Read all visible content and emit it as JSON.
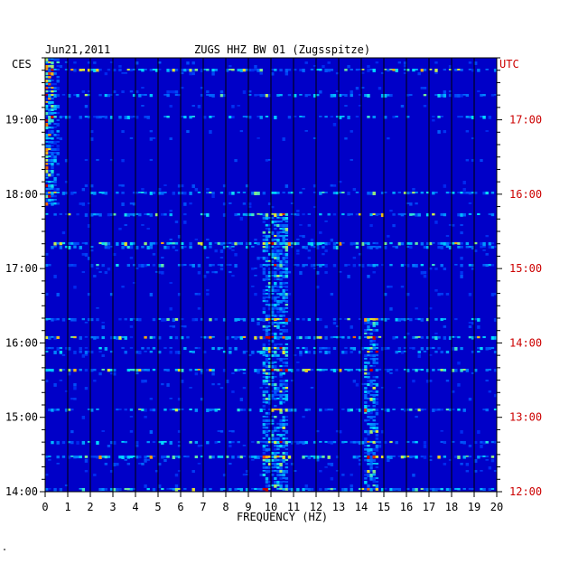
{
  "chart_data": {
    "type": "heatmap",
    "date": "Jun21,2011",
    "station": "ZUGS HHZ BW 01 (Zugsspitze)",
    "left_zone": "CES",
    "right_zone": "UTC",
    "xlabel": "FREQUENCY (HZ)",
    "x_range": [
      0,
      20
    ],
    "x_ticks": [
      "0",
      "1",
      "2",
      "3",
      "4",
      "5",
      "6",
      "7",
      "8",
      "9",
      "10",
      "11",
      "12",
      "13",
      "14",
      "15",
      "16",
      "17",
      "18",
      "19",
      "20"
    ],
    "y_range_ces": [
      "14:00",
      "19:50"
    ],
    "y_ticks_left": [
      "19:00",
      "18:00",
      "17:00",
      "16:00",
      "15:00",
      "14:00"
    ],
    "y_ticks_right": [
      "17:00",
      "16:00",
      "15:00",
      "14:00",
      "13:00",
      "12:00"
    ],
    "colormap": "blue-cyan-yellow-red",
    "features": [
      {
        "description_of": "strong energy",
        "freq_hz": [
          0,
          0.6
        ],
        "time_ces": [
          "17:50",
          "19:50"
        ]
      },
      {
        "description_of": "persistent band",
        "freq_hz": [
          9.6,
          10.8
        ],
        "time_ces": [
          "14:00",
          "17:45"
        ]
      },
      {
        "description_of": "intermittent band",
        "freq_hz": [
          14.1,
          14.7
        ],
        "time_ces": [
          "14:00",
          "16:20"
        ]
      }
    ]
  },
  "colors": {
    "background": "#0000c8",
    "grid": "#000000",
    "left_labels": "#000000",
    "right_labels": "#cc0000"
  },
  "footer_mark": "\""
}
